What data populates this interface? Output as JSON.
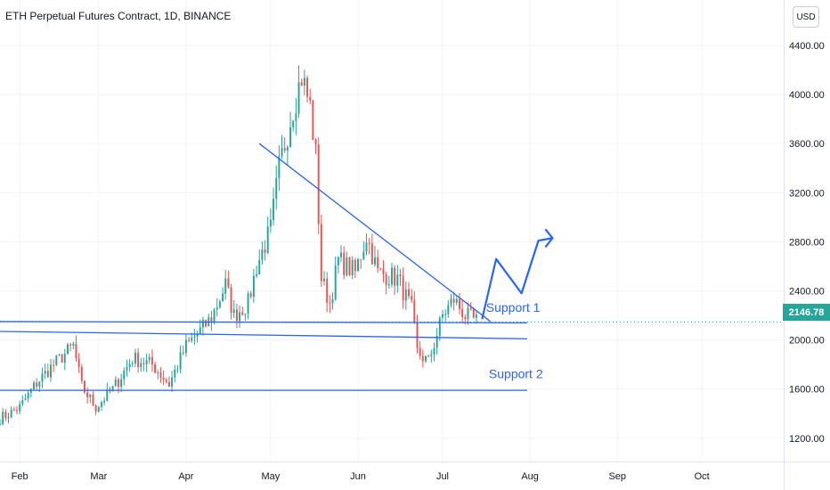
{
  "header": {
    "title": "ETH Perpetual Futures Contract, 1D, BINANCE",
    "currency_button": "USD"
  },
  "colors": {
    "up": "#26a69a",
    "down": "#ef5350",
    "drawing": "#2962ff",
    "last_price_bg": "#26a69a"
  },
  "chart_data": {
    "type": "candlestick",
    "title": "ETH Perpetual Futures Contract, 1D, BINANCE",
    "y_axis": {
      "side": "right",
      "ticks": [
        1200,
        1600,
        2000,
        2400,
        2800,
        3200,
        3600,
        4000,
        4400
      ],
      "tick_labels": [
        "1200.00",
        "1600.00",
        "2000.00",
        "2400.00",
        "2800.00",
        "3200.00",
        "3600.00",
        "4000.00",
        "4400.00"
      ],
      "range": [
        1010,
        4770
      ]
    },
    "x_axis": {
      "ticks": [
        "2021-02-01",
        "2021-03-01",
        "2021-04-01",
        "2021-05-01",
        "2021-06-01",
        "2021-07-01",
        "2021-08-01",
        "2021-09-01",
        "2021-10-01"
      ],
      "tick_labels": [
        "Feb",
        "Mar",
        "Apr",
        "May",
        "Jun",
        "Jul",
        "Aug",
        "Sep",
        "Oct"
      ],
      "range": [
        "2021-01-25",
        "2021-10-30"
      ]
    },
    "last_price": 2146.78,
    "last_price_label": "2146.78",
    "grid": true,
    "keypoints": [
      [
        "2021-01-25",
        1360
      ],
      [
        "2021-02-01",
        1450
      ],
      [
        "2021-02-07",
        1650
      ],
      [
        "2021-02-13",
        1800
      ],
      [
        "2021-02-20",
        1950
      ],
      [
        "2021-02-23",
        1620
      ],
      [
        "2021-02-28",
        1450
      ],
      [
        "2021-03-06",
        1600
      ],
      [
        "2021-03-13",
        1850
      ],
      [
        "2021-03-20",
        1800
      ],
      [
        "2021-03-26",
        1640
      ],
      [
        "2021-04-01",
        1950
      ],
      [
        "2021-04-07",
        2100
      ],
      [
        "2021-04-10",
        2180
      ],
      [
        "2021-04-15",
        2450
      ],
      [
        "2021-04-18",
        2200
      ],
      [
        "2021-04-23",
        2300
      ],
      [
        "2021-04-26",
        2600
      ],
      [
        "2021-05-01",
        2900
      ],
      [
        "2021-05-04",
        3400
      ],
      [
        "2021-05-09",
        3900
      ],
      [
        "2021-05-12",
        4150
      ],
      [
        "2021-05-15",
        3900
      ],
      [
        "2021-05-17",
        3500
      ],
      [
        "2021-05-19",
        2500
      ],
      [
        "2021-05-22",
        2300
      ],
      [
        "2021-05-25",
        2650
      ],
      [
        "2021-05-31",
        2550
      ],
      [
        "2021-06-04",
        2850
      ],
      [
        "2021-06-08",
        2550
      ],
      [
        "2021-06-15",
        2500
      ],
      [
        "2021-06-20",
        2250
      ],
      [
        "2021-06-22",
        1900
      ],
      [
        "2021-06-26",
        1820
      ],
      [
        "2021-07-01",
        2200
      ],
      [
        "2021-07-05",
        2330
      ],
      [
        "2021-07-09",
        2200
      ],
      [
        "2021-07-13",
        2150
      ]
    ],
    "annotations": {
      "support1_label": "Support 1",
      "support2_label": "Support 2",
      "lines": [
        {
          "name": "support-1-upper",
          "from": [
            "2021-01-25",
            2150
          ],
          "to": [
            "2021-07-31",
            2140
          ]
        },
        {
          "name": "support-1-lower",
          "from": [
            "2021-01-25",
            2070
          ],
          "to": [
            "2021-07-31",
            2010
          ]
        },
        {
          "name": "support-2",
          "from": [
            "2021-01-10",
            1590
          ],
          "to": [
            "2021-07-31",
            1590
          ]
        },
        {
          "name": "downtrend-resistance",
          "from": [
            "2021-04-27",
            3600
          ],
          "to": [
            "2021-07-18",
            2150
          ]
        }
      ],
      "projection_path": [
        [
          "2021-07-15",
          2170
        ],
        [
          "2021-07-20",
          2660
        ],
        [
          "2021-07-29",
          2380
        ],
        [
          "2021-08-04",
          2810
        ],
        [
          "2021-08-09",
          2830
        ]
      ],
      "projection_arrow": [
        "2021-08-09",
        2830
      ]
    }
  }
}
